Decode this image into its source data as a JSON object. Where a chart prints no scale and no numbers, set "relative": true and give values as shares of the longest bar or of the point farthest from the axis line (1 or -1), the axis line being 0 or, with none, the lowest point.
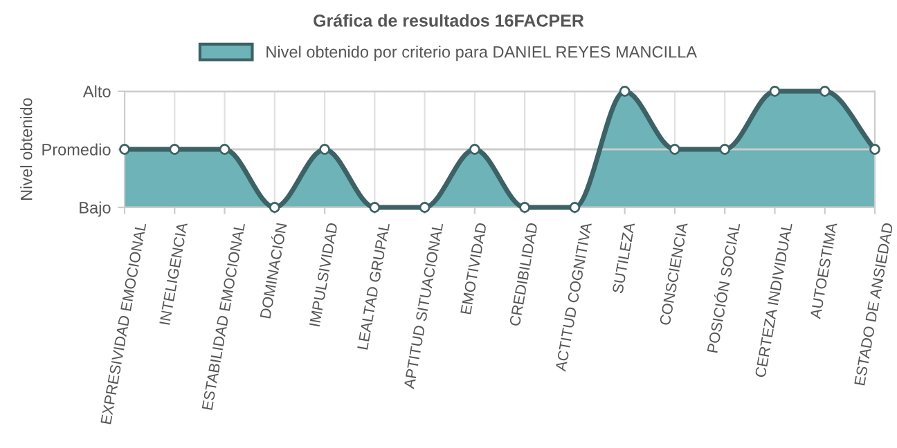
{
  "chart_data": {
    "type": "area",
    "title": "Gráfica de resultados 16FACPER",
    "ylabel": "Nivel obtenido",
    "categories": [
      "EXPRESIVIDAD EMOCIONAL",
      "INTELIGENCIA",
      "ESTABILIDAD EMOCIONAL",
      "DOMINACIÓN",
      "IMPULSIVIDAD",
      "LEALTAD GRUPAL",
      "APTITUD SITUACIONAL",
      "EMOTIVIDAD",
      "CREDIBILIDAD",
      "ACTITUD COGNITIVA",
      "SUTILEZA",
      "CONSCIENCIA",
      "POSICIÓN SOCIAL",
      "CERTEZA INDIVIDUAL",
      "AUTOESTIMA",
      "ESTADO DE ANSIEDAD"
    ],
    "series": [
      {
        "name": "Nivel obtenido por criterio para DANIEL REYES MANCILLA",
        "color": "#6db3b7",
        "values": [
          0.5,
          0.5,
          0.5,
          0,
          0.5,
          0,
          0,
          0.5,
          0,
          0,
          1,
          0.5,
          0.5,
          1,
          1,
          0.5
        ]
      }
    ],
    "relative": true,
    "ref_lines": [
      {
        "axis": "y",
        "value": 0,
        "label": "Bajo",
        "color": "#cccccc"
      },
      {
        "axis": "y",
        "value": 0.5,
        "label": "Promedio",
        "color": "#cccccc"
      },
      {
        "axis": "y",
        "value": 1,
        "label": "Alto",
        "color": "#cccccc"
      }
    ],
    "grid": "x",
    "legend": "top",
    "marker": "circle",
    "line_style": "solid"
  }
}
